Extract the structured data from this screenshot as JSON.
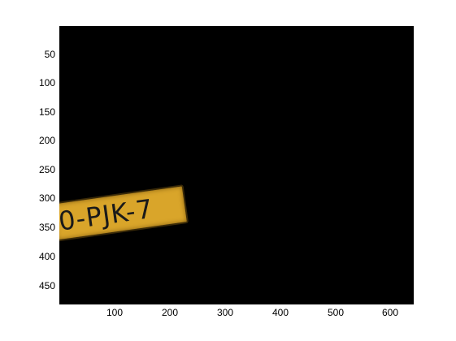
{
  "image": {
    "plate_text": "0-PJK-7",
    "background_color": "#000000",
    "plate_color": "#d9a52a"
  },
  "axes": {
    "y_ticks": [
      "50",
      "100",
      "150",
      "200",
      "250",
      "300",
      "350",
      "400",
      "450"
    ],
    "x_ticks": [
      "100",
      "200",
      "300",
      "400",
      "500",
      "600"
    ]
  }
}
